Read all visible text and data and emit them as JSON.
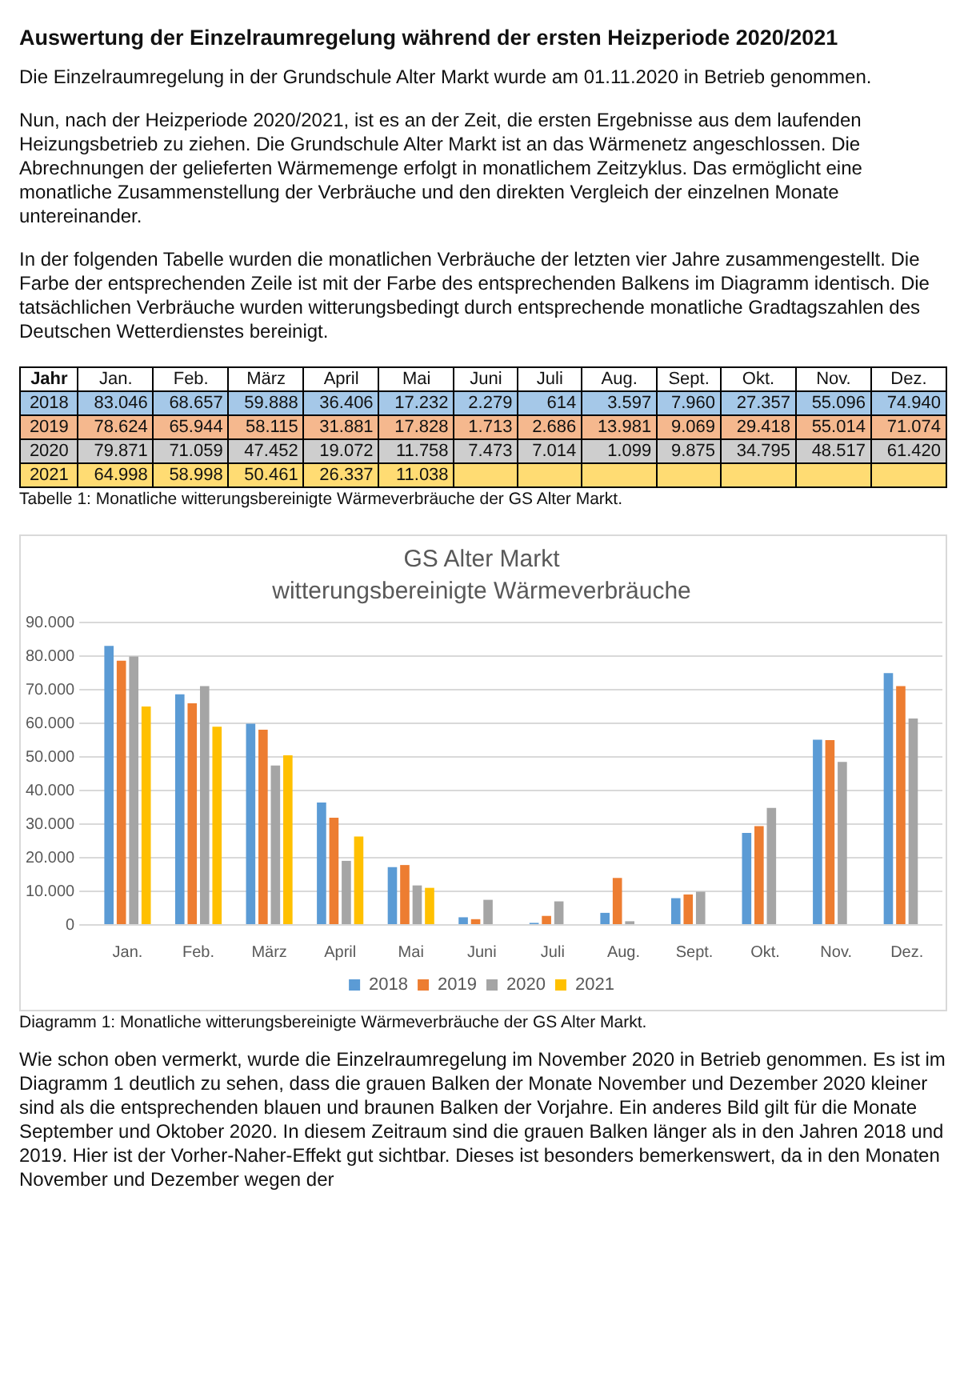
{
  "chart_data": {
    "type": "bar",
    "title": "GS Alter Markt",
    "subtitle": "witterungsbereinigte Wärmeverbräuche",
    "legend_title": "Jahr",
    "categories": [
      "Jan.",
      "Feb.",
      "März",
      "April",
      "Mai",
      "Juni",
      "Juli",
      "Aug.",
      "Sept.",
      "Okt.",
      "Nov.",
      "Dez."
    ],
    "series": [
      {
        "name": "2018",
        "color": "#5b9bd5",
        "values": [
          83046,
          68657,
          59888,
          36406,
          17232,
          2279,
          614,
          3597,
          7960,
          27357,
          55096,
          74940
        ],
        "value_labels": [
          "83.046",
          "68.657",
          "59.888",
          "36.406",
          "17.232",
          "2.279",
          "614",
          "3.597",
          "7.960",
          "27.357",
          "55.096",
          "74.940"
        ]
      },
      {
        "name": "2019",
        "color": "#ed7d31",
        "values": [
          78624,
          65944,
          58115,
          31881,
          17828,
          1713,
          2686,
          13981,
          9069,
          29418,
          55014,
          71074
        ],
        "value_labels": [
          "78.624",
          "65.944",
          "58.115",
          "31.881",
          "17.828",
          "1.713",
          "2.686",
          "13.981",
          "9.069",
          "29.418",
          "55.014",
          "71.074"
        ]
      },
      {
        "name": "2020",
        "color": "#a5a5a5",
        "values": [
          79871,
          71059,
          47452,
          19072,
          11758,
          7473,
          7014,
          1099,
          9875,
          34795,
          48517,
          61420
        ],
        "value_labels": [
          "79.871",
          "71.059",
          "47.452",
          "19.072",
          "11.758",
          "7.473",
          "7.014",
          "1.099",
          "9.875",
          "34.795",
          "48.517",
          "61.420"
        ]
      },
      {
        "name": "2021",
        "color": "#ffc000",
        "values": [
          64998,
          58998,
          50461,
          26337,
          11038,
          null,
          null,
          null,
          null,
          null,
          null,
          null
        ],
        "value_labels": [
          "64.998",
          "58.998",
          "50.461",
          "26.337",
          "11.038",
          null,
          null,
          null,
          null,
          null,
          null,
          null
        ]
      }
    ],
    "ylim": [
      0,
      90000
    ],
    "yticks": [
      {
        "value": 0,
        "label": "0"
      },
      {
        "value": 10000,
        "label": "10.000"
      },
      {
        "value": 20000,
        "label": "20.000"
      },
      {
        "value": 30000,
        "label": "30.000"
      },
      {
        "value": 40000,
        "label": "40.000"
      },
      {
        "value": 50000,
        "label": "50.000"
      },
      {
        "value": 60000,
        "label": "60.000"
      },
      {
        "value": 70000,
        "label": "70.000"
      },
      {
        "value": 80000,
        "label": "80.000"
      },
      {
        "value": 90000,
        "label": "90.000"
      }
    ],
    "grid": "y",
    "legend": "bottom",
    "annotations": [
      "Auswertung der Einzelraumregelung während der ersten Heizperiode 2020/2021",
      "Die Einzelraumregelung in der Grundschule Alter Markt wurde am 01.11.2020 in Betrieb genommen.",
      "Nun, nach der Heizperiode 2020/2021, ist es an der Zeit, die ersten Ergebnisse aus dem laufenden Heizungsbetrieb zu ziehen. Die Grundschule Alter Markt ist an das Wärmenetz angeschlossen. Die Abrechnungen der gelieferten Wärmemenge erfolgt in monatlichem Zeitzyklus. Das ermöglicht eine monatliche Zusammenstellung der Verbräuche und den direkten Vergleich der einzelnen Monate untereinander.",
      "In der folgenden Tabelle wurden die monatlichen Verbräuche der letzten vier Jahre zusammengestellt. Die Farbe der entsprechenden Zeile ist mit der Farbe des entsprechenden Balkens im Diagramm identisch. Die tatsächlichen Verbräuche wurden witterungsbedingt durch entsprechende monatliche Gradtagszahlen des Deutschen Wetterdienstes bereinigt.",
      "Tabelle 1: Monatliche witterungsbereinigte Wärmeverbräuche der GS Alter Markt.",
      "Diagramm 1: Monatliche witterungsbereinigte Wärmeverbräuche der GS Alter Markt.",
      "Wie schon oben vermerkt, wurde die Einzelraumregelung im November 2020 in Betrieb genommen. Es ist im Diagramm 1 deutlich zu sehen, dass die grauen Balken der Monate November und Dezember 2020 kleiner sind als die entsprechenden blauen und braunen Balken der Vorjahre. Ein anderes Bild gilt für die Monate September und Oktober 2020. In diesem Zeitraum sind die grauen Balken länger als in den Jahren 2018 und 2019. Hier ist der Vorher-Naher-Effekt gut sichtbar. Dieses ist besonders bemerkenswert, da in den Monaten November und Dezember wegen der"
    ]
  }
}
